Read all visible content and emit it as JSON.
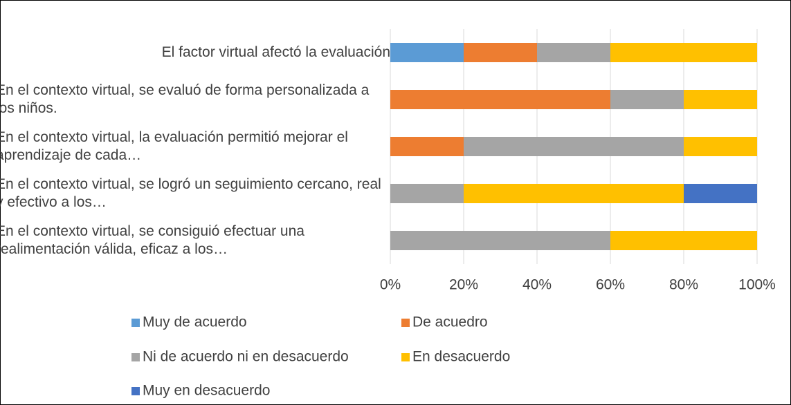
{
  "chart_data": {
    "type": "stacked_barh",
    "categories": [
      "El factor virtual afectó la evaluación",
      "En el contexto virtual, se evaluó de forma personalizada a los niños.",
      "En el contexto virtual, la evaluación permitió mejorar el aprendizaje de cada…",
      "En el contexto virtual, se logró un seguimiento cercano, real y efectivo a los…",
      "En el contexto virtual, se consiguió efectuar una realimentación válida, eficaz a los…"
    ],
    "series": [
      {
        "name": "Muy de acuerdo",
        "color": "#5b9bd5",
        "values": [
          20,
          0,
          0,
          0,
          0
        ]
      },
      {
        "name": "De acuedro",
        "color": "#ed7d31",
        "values": [
          20,
          60,
          20,
          0,
          0
        ]
      },
      {
        "name": "Ni de acuerdo ni en desacuerdo",
        "color": "#a5a5a5",
        "values": [
          20,
          20,
          60,
          20,
          60
        ]
      },
      {
        "name": "En desacuerdo",
        "color": "#ffc000",
        "values": [
          40,
          20,
          20,
          60,
          40
        ]
      },
      {
        "name": "Muy en desacuerdo",
        "color": "#4472c4",
        "values": [
          0,
          0,
          0,
          20,
          0
        ]
      }
    ],
    "xlim": [
      0,
      100
    ],
    "xticks": [
      {
        "value": 0,
        "label": "0%"
      },
      {
        "value": 20,
        "label": "20%"
      },
      {
        "value": 40,
        "label": "40%"
      },
      {
        "value": 60,
        "label": "60%"
      },
      {
        "value": 80,
        "label": "80%"
      },
      {
        "value": 100,
        "label": "100%"
      }
    ],
    "grid": true,
    "legend": "bottom"
  }
}
